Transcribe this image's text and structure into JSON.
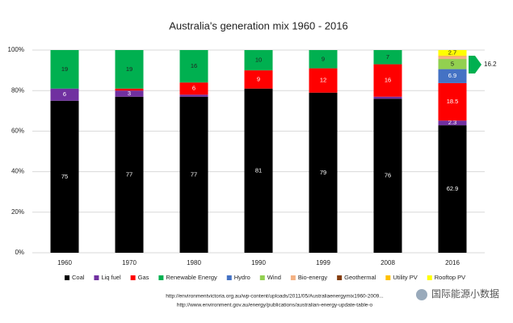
{
  "chart_data": {
    "type": "stacked_bar",
    "title": "Australia's generation mix 1960 - 2016",
    "categories": [
      "1960",
      "1970",
      "1980",
      "1990",
      "1999",
      "2008",
      "2016"
    ],
    "series": [
      {
        "name": "Coal",
        "color": "#000000",
        "values": [
          75,
          77,
          77,
          81,
          79,
          76,
          62.9
        ]
      },
      {
        "name": "Liq fuel",
        "color": "#7030a0",
        "values": [
          6,
          3,
          1,
          0,
          0,
          1,
          2.3
        ]
      },
      {
        "name": "Gas",
        "color": "#ff0000",
        "values": [
          0,
          1,
          6,
          9,
          12,
          16,
          18.5
        ]
      },
      {
        "name": "Renewable Energy",
        "color": "#00b050",
        "values": [
          19,
          19,
          16,
          10,
          9,
          7,
          0
        ]
      },
      {
        "name": "Hydro",
        "color": "#4472c4",
        "values": [
          0,
          0,
          0,
          0,
          0,
          0,
          6.9
        ]
      },
      {
        "name": "Wind",
        "color": "#92d050",
        "values": [
          0,
          0,
          0,
          0,
          0,
          0,
          5
        ]
      },
      {
        "name": "Bio-energy",
        "color": "#f4b183",
        "values": [
          0,
          0,
          0,
          0,
          0,
          0,
          1.4
        ]
      },
      {
        "name": "Geothermal",
        "color": "#843c0c",
        "values": [
          0,
          0,
          0,
          0,
          0,
          0,
          0
        ]
      },
      {
        "name": "Utility PV",
        "color": "#ffc000",
        "values": [
          0,
          0,
          0,
          0,
          0,
          0,
          0.3
        ]
      },
      {
        "name": "Rooftop PV",
        "color": "#ffff00",
        "values": [
          0,
          0,
          0,
          0,
          0,
          0,
          2.7
        ]
      }
    ],
    "ylim": [
      0,
      100
    ],
    "yticks": [
      {
        "value": 0,
        "label": "0%"
      },
      {
        "value": 20,
        "label": "20%"
      },
      {
        "value": 40,
        "label": "40%"
      },
      {
        "value": 60,
        "label": "60%"
      },
      {
        "value": 80,
        "label": "80%"
      },
      {
        "value": 100,
        "label": "100%"
      }
    ],
    "grid": true,
    "annotation": {
      "text": "16.2",
      "value": 16.2,
      "color": "#00b050"
    },
    "sources": [
      "http://environmentvictoria.org.au/wp-content/uploads/2011/05/Australiaenergymix1960-2009...",
      "http://www.environment.gov.au/energy/publications/australian-energy-update-table-o"
    ],
    "watermark": "国际能源小数据"
  }
}
